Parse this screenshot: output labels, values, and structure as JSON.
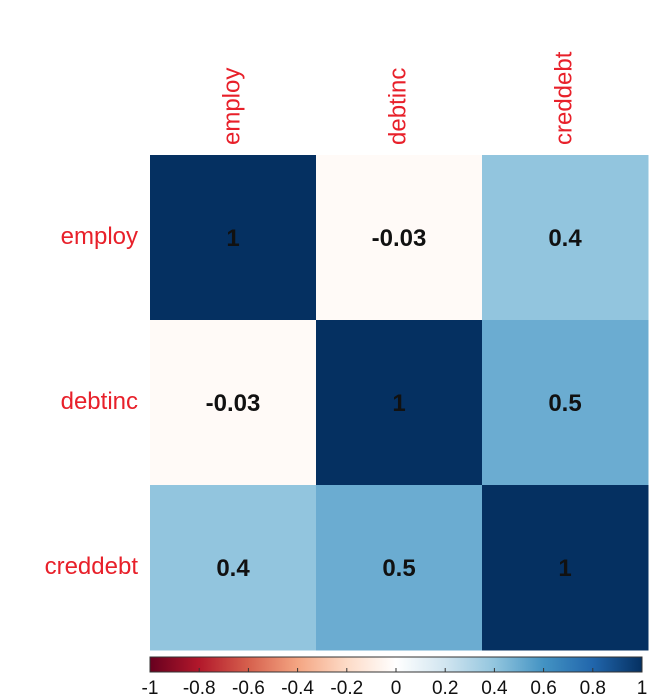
{
  "chart_data": {
    "type": "heatmap",
    "x": [
      "employ",
      "debtinc",
      "creddebt"
    ],
    "y": [
      "employ",
      "debtinc",
      "creddebt"
    ],
    "values": [
      [
        1,
        -0.03,
        0.4
      ],
      [
        -0.03,
        1,
        0.5
      ],
      [
        0.4,
        0.5,
        1
      ]
    ],
    "colorscale": [
      "#67001F",
      "#B2182B",
      "#D6604D",
      "#F4A582",
      "#FDDBC7",
      "#FFFFFF",
      "#D1E5F0",
      "#92C5DE",
      "#4393C3",
      "#2166AC",
      "#053061"
    ],
    "zlim": [
      -1,
      1
    ],
    "zticks": [
      -1,
      -0.8,
      -0.6,
      -0.4,
      -0.2,
      0,
      0.2,
      0.4,
      0.6,
      0.8,
      1
    ],
    "label_color": "#e8202a"
  }
}
